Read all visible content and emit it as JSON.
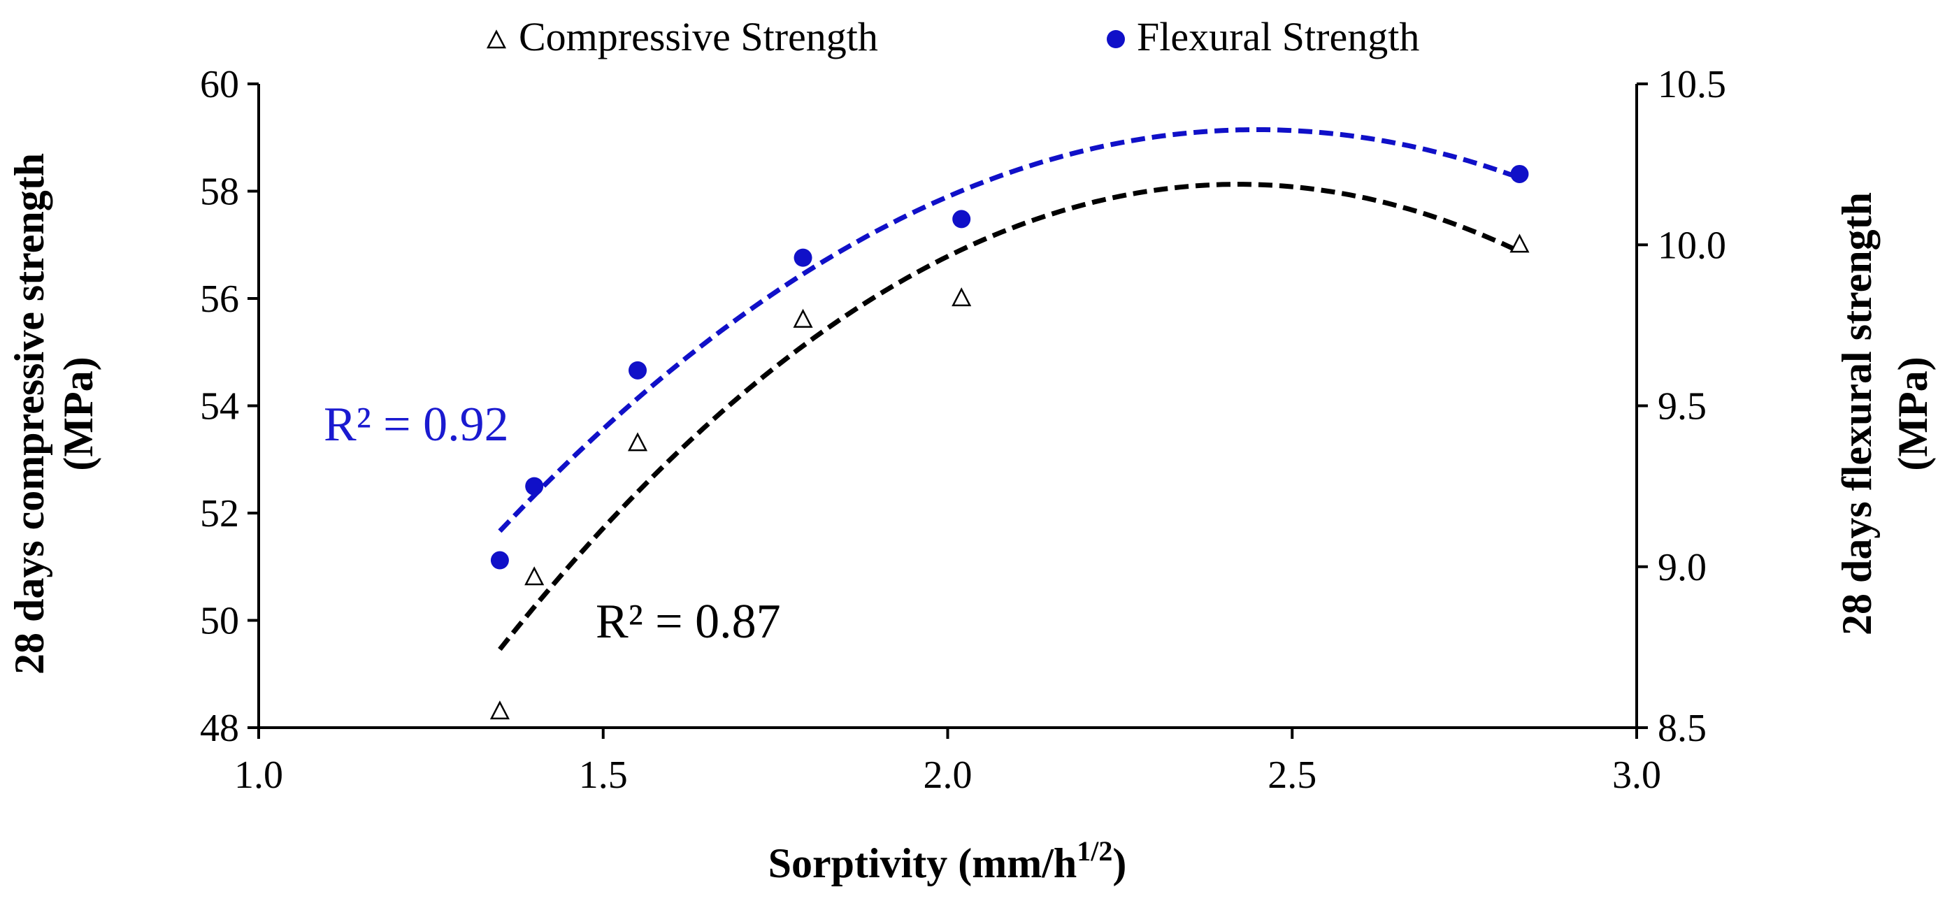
{
  "chart_data": {
    "type": "scatter",
    "x_axis": {
      "label": "Sorptivity (mm/h",
      "label_sup": "1/2",
      "label_end": ")",
      "range": [
        1.0,
        3.0
      ],
      "ticks": [
        1.0,
        1.5,
        2.0,
        2.5,
        3.0
      ],
      "tick_labels": [
        "1.0",
        "1.5",
        "2.0",
        "2.5",
        "3.0"
      ]
    },
    "y_axis_left": {
      "label_line1": "28 days compressive strength",
      "label_line2": "(MPa)",
      "range": [
        48,
        60
      ],
      "ticks": [
        48,
        50,
        52,
        54,
        56,
        58,
        60
      ],
      "tick_labels": [
        "48",
        "50",
        "52",
        "54",
        "56",
        "58",
        "60"
      ]
    },
    "y_axis_right": {
      "label_line1": "28 days flexural strength",
      "label_line2": "(MPa)",
      "range": [
        8.5,
        10.5
      ],
      "ticks": [
        8.5,
        9.0,
        9.5,
        10.0,
        10.5
      ],
      "tick_labels": [
        "8.5",
        "9.0",
        "9.5",
        "10.0",
        "10.5"
      ]
    },
    "series": [
      {
        "name": "Compressive Strength",
        "axis": "left",
        "marker": "open-triangle",
        "color": "#000000",
        "x": [
          1.35,
          1.4,
          1.55,
          1.79,
          2.02,
          2.83
        ],
        "y": [
          48.3,
          50.8,
          53.3,
          55.6,
          56.0,
          57.0
        ],
        "trend": {
          "type": "poly2",
          "x_range": [
            1.35,
            2.83
          ],
          "r2_label": "R² = 0.87"
        }
      },
      {
        "name": "Flexural Strength",
        "axis": "right",
        "marker": "filled-circle",
        "color": "#1010c8",
        "x": [
          1.35,
          1.4,
          1.55,
          1.79,
          2.02,
          2.83
        ],
        "y": [
          9.02,
          9.25,
          9.61,
          9.96,
          10.08,
          10.22
        ],
        "trend": {
          "type": "poly2",
          "x_range": [
            1.35,
            2.83
          ],
          "r2_label": "R² = 0.92"
        }
      }
    ],
    "legend": {
      "placement": "top-center",
      "items": [
        "Compressive Strength",
        "Flexural Strength"
      ]
    }
  }
}
